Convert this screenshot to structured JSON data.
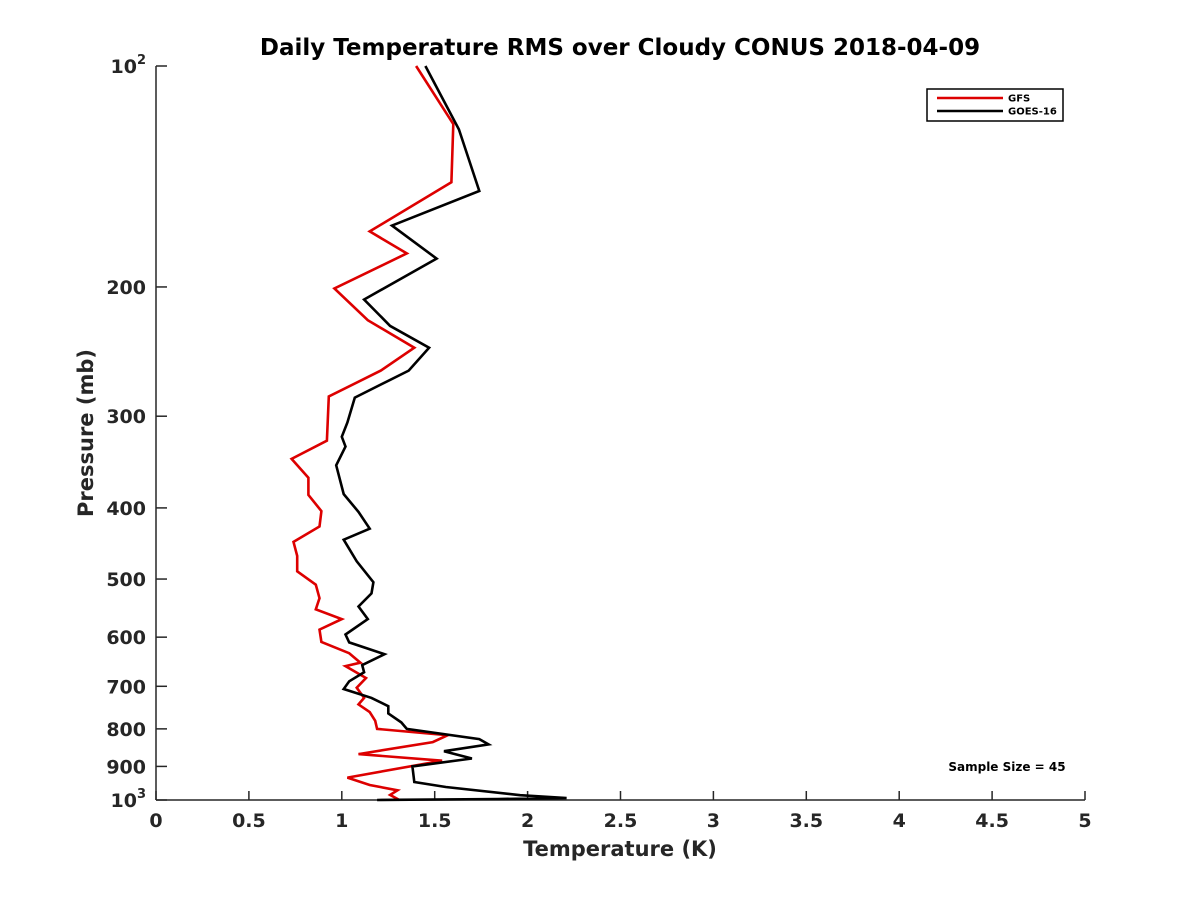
{
  "chart_data": {
    "type": "line",
    "title": "Daily Temperature RMS over Cloudy CONUS 2018-04-09",
    "xlabel": "Temperature (K)",
    "ylabel": "Pressure (mb)",
    "xlim": [
      0,
      5
    ],
    "ylim": [
      100,
      1000
    ],
    "y_scale": "log",
    "y_reversed": true,
    "grid": false,
    "legend_position": "top-right",
    "x_ticks": [
      "0",
      "0.5",
      "1",
      "1.5",
      "2",
      "2.5",
      "3",
      "3.5",
      "4",
      "4.5",
      "5"
    ],
    "y_ticks": [
      {
        "value": 100,
        "base": "10",
        "sup": "2"
      },
      {
        "value": 200,
        "base": "200",
        "sup": ""
      },
      {
        "value": 300,
        "base": "300",
        "sup": ""
      },
      {
        "value": 400,
        "base": "400",
        "sup": ""
      },
      {
        "value": 500,
        "base": "500",
        "sup": ""
      },
      {
        "value": 600,
        "base": "600",
        "sup": ""
      },
      {
        "value": 700,
        "base": "700",
        "sup": ""
      },
      {
        "value": 800,
        "base": "800",
        "sup": ""
      },
      {
        "value": 900,
        "base": "900",
        "sup": ""
      },
      {
        "value": 1000,
        "base": "10",
        "sup": "3"
      }
    ],
    "series": [
      {
        "name": "GFS",
        "color": "#dd0000",
        "points": [
          [
            1.4,
            100
          ],
          [
            1.6,
            120
          ],
          [
            1.59,
            144
          ],
          [
            1.15,
            168
          ],
          [
            1.35,
            180
          ],
          [
            0.96,
            201
          ],
          [
            1.14,
            222
          ],
          [
            1.39,
            242
          ],
          [
            1.21,
            260
          ],
          [
            0.93,
            282
          ],
          [
            0.92,
            324
          ],
          [
            0.73,
            343
          ],
          [
            0.82,
            364
          ],
          [
            0.82,
            384
          ],
          [
            0.89,
            404
          ],
          [
            0.88,
            424
          ],
          [
            0.74,
            445
          ],
          [
            0.76,
            465
          ],
          [
            0.76,
            488
          ],
          [
            0.86,
            509
          ],
          [
            0.88,
            531
          ],
          [
            0.86,
            550
          ],
          [
            1.0,
            567
          ],
          [
            0.88,
            586
          ],
          [
            0.89,
            609
          ],
          [
            1.04,
            631
          ],
          [
            1.1,
            650
          ],
          [
            1.02,
            657
          ],
          [
            1.13,
            682
          ],
          [
            1.08,
            703
          ],
          [
            1.12,
            726
          ],
          [
            1.09,
            741
          ],
          [
            1.15,
            759
          ],
          [
            1.18,
            780
          ],
          [
            1.19,
            800
          ],
          [
            1.57,
            816
          ],
          [
            1.49,
            834
          ],
          [
            1.09,
            866
          ],
          [
            1.54,
            884
          ],
          [
            1.03,
            932
          ],
          [
            1.15,
            954
          ],
          [
            1.3,
            970
          ],
          [
            1.26,
            984
          ],
          [
            1.31,
            1000
          ]
        ]
      },
      {
        "name": "GOES-16",
        "color": "#000000",
        "points": [
          [
            1.45,
            100
          ],
          [
            1.63,
            122
          ],
          [
            1.74,
            148
          ],
          [
            1.27,
            165
          ],
          [
            1.51,
            183
          ],
          [
            1.12,
            208
          ],
          [
            1.26,
            226
          ],
          [
            1.47,
            242
          ],
          [
            1.36,
            260
          ],
          [
            1.07,
            283
          ],
          [
            1.03,
            306
          ],
          [
            1.0,
            320
          ],
          [
            1.02,
            330
          ],
          [
            0.97,
            350
          ],
          [
            1.01,
            383
          ],
          [
            1.09,
            405
          ],
          [
            1.15,
            427
          ],
          [
            1.01,
            442
          ],
          [
            1.08,
            473
          ],
          [
            1.17,
            505
          ],
          [
            1.16,
            523
          ],
          [
            1.09,
            545
          ],
          [
            1.14,
            567
          ],
          [
            1.02,
            595
          ],
          [
            1.04,
            610
          ],
          [
            1.23,
            633
          ],
          [
            1.11,
            655
          ],
          [
            1.12,
            670
          ],
          [
            1.04,
            689
          ],
          [
            1.01,
            706
          ],
          [
            1.16,
            726
          ],
          [
            1.25,
            745
          ],
          [
            1.25,
            762
          ],
          [
            1.32,
            784
          ],
          [
            1.35,
            800
          ],
          [
            1.74,
            826
          ],
          [
            1.79,
            840
          ],
          [
            1.55,
            858
          ],
          [
            1.7,
            878
          ],
          [
            1.38,
            900
          ],
          [
            1.39,
            945
          ],
          [
            1.56,
            960
          ],
          [
            1.96,
            985
          ],
          [
            2.21,
            994
          ],
          [
            1.84,
            997
          ],
          [
            1.19,
            1000
          ]
        ]
      }
    ],
    "annotations": [
      "Sample Size = 45"
    ]
  }
}
